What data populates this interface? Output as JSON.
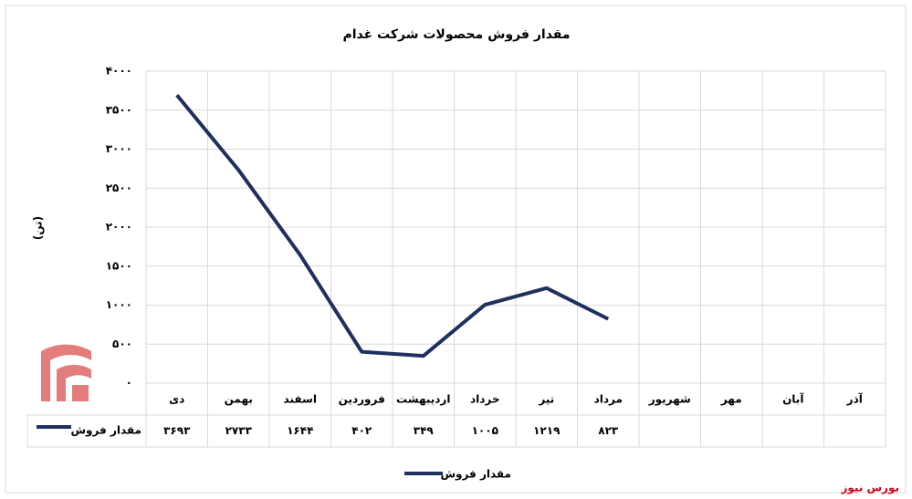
{
  "chart_data": {
    "type": "line",
    "title": "مقدار فروش محصولات شرکت غدام",
    "y_label": "(تن)",
    "categories": [
      "دی",
      "بهمن",
      "اسفند",
      "فروردین",
      "اردیبهشت",
      "خرداد",
      "تیر",
      "مرداد",
      "شهریور",
      "مهر",
      "آبان",
      "آذر"
    ],
    "series": [
      {
        "name": "مقدار فروش",
        "color": "#1f2f5e",
        "values": [
          3693,
          2733,
          1644,
          402,
          349,
          1005,
          1219,
          823,
          null,
          null,
          null,
          null
        ],
        "value_labels": [
          "۳۶۹۳",
          "۲۷۳۳",
          "۱۶۴۴",
          "۴۰۲",
          "۳۴۹",
          "۱۰۰۵",
          "۱۲۱۹",
          "۸۲۳",
          null,
          null,
          null,
          null
        ]
      }
    ],
    "ylim": [
      0,
      4000
    ],
    "yticks": [
      {
        "value": 0,
        "label": "۰"
      },
      {
        "value": 500,
        "label": "۵۰۰"
      },
      {
        "value": 1000,
        "label": "۱۰۰۰"
      },
      {
        "value": 1500,
        "label": "۱۵۰۰"
      },
      {
        "value": 2000,
        "label": "۲۰۰۰"
      },
      {
        "value": 2500,
        "label": "۲۵۰۰"
      },
      {
        "value": 3000,
        "label": "۳۰۰۰"
      },
      {
        "value": 3500,
        "label": "۳۵۰۰"
      },
      {
        "value": 4000,
        "label": "۴۰۰۰"
      }
    ],
    "grid": true,
    "legend": "bottom",
    "watermark": "بورس نیوز"
  }
}
